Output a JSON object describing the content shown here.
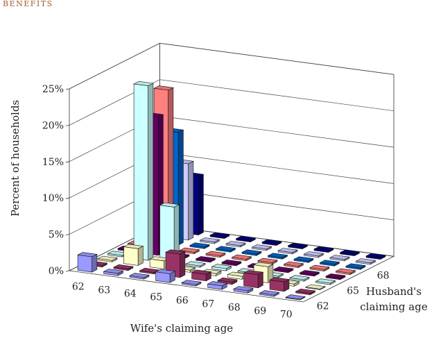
{
  "header": {
    "text": "BENEFITS"
  },
  "chart_data": {
    "type": "bar3d",
    "title": "",
    "ylabel": "Percent of households",
    "xlabel": "Wife's claiming age",
    "zlabel_line1": "Husband's",
    "zlabel_line2": "claiming age",
    "ylim": [
      0,
      25
    ],
    "y_ticks": [
      "0%",
      "5%",
      "10%",
      "15%",
      "20%",
      "25%"
    ],
    "x_categories": [
      "62",
      "63",
      "64",
      "65",
      "66",
      "67",
      "68",
      "69",
      "70"
    ],
    "z_categories": [
      "62",
      "63",
      "64",
      "65",
      "66",
      "67",
      "68",
      "69",
      "70"
    ],
    "z_tick_labels": [
      "62",
      "65",
      "68"
    ],
    "row_colors": [
      "#9999ff",
      "#993366",
      "#ffffcc",
      "#ccffff",
      "#660066",
      "#ff8080",
      "#0066cc",
      "#ccccff",
      "#000080"
    ],
    "values": [
      [
        2.1,
        0.3,
        0.2,
        1.2,
        0.2,
        0.5,
        0.3,
        0.2,
        0.1
      ],
      [
        0.2,
        0.2,
        0.2,
        3.2,
        0.9,
        0.3,
        1.8,
        1.3,
        0.2
      ],
      [
        0.2,
        2.3,
        1.1,
        0.3,
        0.3,
        0.4,
        2.2,
        0.3,
        0.1
      ],
      [
        0.2,
        24.0,
        7.8,
        0.2,
        0.3,
        0.2,
        0.2,
        0.2,
        0.2
      ],
      [
        0.2,
        19.0,
        0.2,
        0.2,
        0.2,
        0.2,
        0.2,
        0.2,
        0.2
      ],
      [
        0.2,
        22.0,
        0.2,
        0.2,
        0.2,
        0.2,
        0.2,
        0.2,
        0.2
      ],
      [
        0.2,
        15.5,
        0.2,
        0.2,
        0.2,
        0.2,
        0.2,
        0.2,
        0.2
      ],
      [
        0.2,
        10.5,
        0.2,
        0.2,
        0.2,
        0.2,
        0.2,
        0.2,
        0.2
      ],
      [
        0.2,
        8.0,
        0.2,
        0.2,
        0.2,
        0.2,
        0.2,
        0.2,
        0.2
      ]
    ]
  }
}
